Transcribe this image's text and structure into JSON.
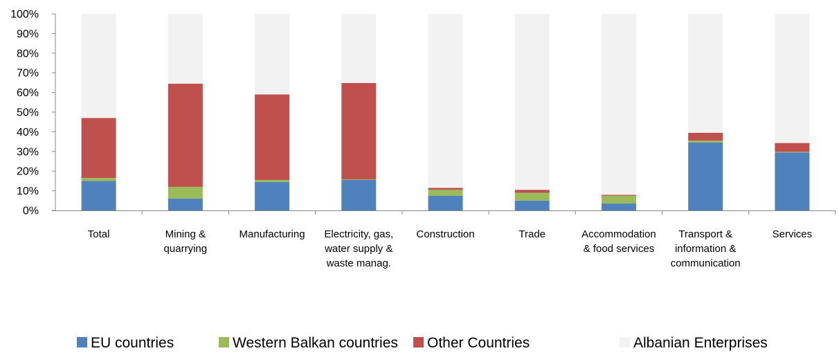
{
  "chart_data": {
    "type": "bar",
    "stacked": true,
    "percent_stacked": true,
    "categories": [
      [
        "Total"
      ],
      [
        "Mining &",
        "quarrying"
      ],
      [
        "Manufacturing"
      ],
      [
        "Electricity, gas,",
        "water supply &",
        "waste manag."
      ],
      [
        "Construction"
      ],
      [
        "Trade"
      ],
      [
        "Accommodation",
        "& food services"
      ],
      [
        "Transport &",
        "information &",
        "communication"
      ],
      [
        "Services"
      ]
    ],
    "series": [
      {
        "name": "EU countries",
        "color": "#4F81BD",
        "values": [
          15,
          6,
          14.5,
          15.5,
          7.5,
          5,
          3.5,
          34.5,
          29.5
        ]
      },
      {
        "name": "Western Balkan countries",
        "color": "#9BBB59",
        "values": [
          1.5,
          6,
          1,
          0.3,
          3,
          4,
          4,
          1,
          0.3
        ]
      },
      {
        "name": "Other Countries",
        "color": "#C0504D",
        "values": [
          30.5,
          52.5,
          43.5,
          49,
          1,
          1.5,
          0.5,
          4,
          4.5
        ]
      },
      {
        "name": "Albanian Enterprises",
        "color": "#F2F2F2",
        "values": [
          53,
          35.5,
          41,
          35.2,
          88.5,
          89.5,
          92,
          60.5,
          65.7
        ]
      }
    ],
    "y_ticks": [
      "0%",
      "10%",
      "20%",
      "30%",
      "40%",
      "50%",
      "60%",
      "70%",
      "80%",
      "90%",
      "100%"
    ],
    "ylim": [
      0,
      100
    ],
    "grid": false,
    "legend_position": "bottom"
  }
}
